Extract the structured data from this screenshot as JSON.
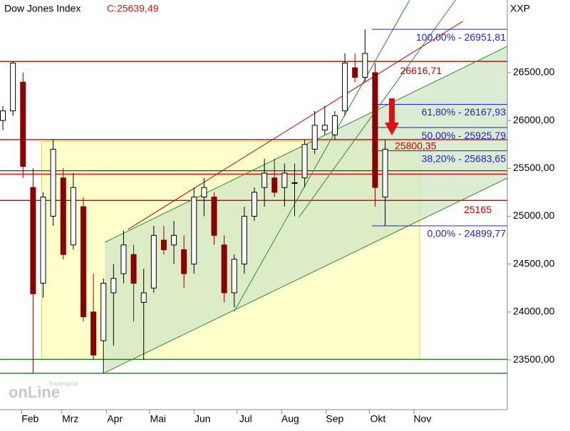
{
  "chart_data": {
    "type": "candlestick",
    "title": "Dow Jones Index",
    "subtitle": "C:25639,49",
    "axis_label": "XXP",
    "watermark": "onLine",
    "watermark_small": "Tradesignal",
    "xlim": [
      17,
      370
    ],
    "ylim": [
      22980,
      27258
    ],
    "xticks": [
      {
        "value": 32,
        "label": "Feb"
      },
      {
        "value": 60,
        "label": "Mrz"
      },
      {
        "value": 91,
        "label": "Apr"
      },
      {
        "value": 121,
        "label": "Mai"
      },
      {
        "value": 152,
        "label": "Jun"
      },
      {
        "value": 182,
        "label": "Jul"
      },
      {
        "value": 213,
        "label": "Aug"
      },
      {
        "value": 244,
        "label": "Sep"
      },
      {
        "value": 274,
        "label": "Okt"
      },
      {
        "value": 305,
        "label": "Nov"
      }
    ],
    "yticks": [
      {
        "value": 23500,
        "label": "23500,00"
      },
      {
        "value": 24000,
        "label": "24000,00"
      },
      {
        "value": 24500,
        "label": "24500,00"
      },
      {
        "value": 25000,
        "label": "25000,00"
      },
      {
        "value": 25500,
        "label": "25500,00"
      },
      {
        "value": 26000,
        "label": "26000,00"
      },
      {
        "value": 26500,
        "label": "26500,00"
      }
    ],
    "up_color": "#000000",
    "down_color": "#8b0000",
    "x": [
      19,
      26,
      33,
      40,
      47,
      54,
      61,
      68,
      75,
      82,
      89,
      96,
      103,
      110,
      117,
      124,
      131,
      138,
      145,
      152,
      159,
      166,
      173,
      180,
      187,
      194,
      201,
      208,
      215,
      222,
      229,
      236,
      243,
      250,
      257,
      264,
      271,
      278,
      285
    ],
    "open": [
      26000,
      26100,
      26400,
      25300,
      24300,
      25000,
      25400,
      24700,
      25100,
      24000,
      23700,
      24200,
      24400,
      24600,
      24100,
      24250,
      24750,
      24700,
      24650,
      24500,
      25200,
      25200,
      24700,
      24200,
      24500,
      25000,
      25300,
      25400,
      25300,
      25350,
      25400,
      25700,
      25900,
      25850,
      26100,
      26550,
      26450,
      26500,
      25200
    ],
    "high": [
      26150,
      26616,
      26500,
      25500,
      25250,
      25800,
      25500,
      25450,
      25200,
      24400,
      24350,
      24500,
      24850,
      24700,
      24450,
      24900,
      24900,
      24950,
      24800,
      25300,
      25400,
      25250,
      24800,
      24600,
      25100,
      25300,
      25600,
      25600,
      25550,
      25550,
      25800,
      26100,
      26150,
      26100,
      26700,
      26700,
      26951,
      26600,
      25800
    ],
    "low": [
      25900,
      26050,
      25400,
      23360,
      24150,
      24900,
      24550,
      24650,
      23900,
      23500,
      23360,
      23650,
      24300,
      23900,
      23500,
      24200,
      24600,
      24500,
      24250,
      24400,
      25000,
      24700,
      24100,
      24050,
      24400,
      24950,
      25100,
      25200,
      25100,
      25000,
      25300,
      25650,
      25850,
      25800,
      26050,
      26400,
      26400,
      25100,
      24900
    ],
    "close": [
      26100,
      26600,
      25520,
      24190,
      25200,
      25700,
      24600,
      25300,
      23950,
      23550,
      24300,
      24350,
      24700,
      24300,
      24200,
      24800,
      24650,
      24800,
      24400,
      25200,
      25300,
      24800,
      24200,
      24550,
      25000,
      25250,
      25450,
      25250,
      25450,
      25350,
      25750,
      25950,
      25950,
      26050,
      26600,
      26450,
      26700,
      25300,
      25700
    ],
    "zone": {
      "x": [
        46,
        309
      ],
      "y": [
        23505,
        25780
      ],
      "color": "#ffffcc"
    },
    "channel": {
      "x": [
        90,
        90,
        370,
        370
      ],
      "y": [
        23367,
        24728,
        26774,
        25398
      ],
      "color": "#cfe6c4"
    },
    "trendlines": [
      {
        "x": [
          90,
          370
        ],
        "y": [
          23367,
          25398
        ],
        "color": "#2e8b2e"
      },
      {
        "x": [
          90,
          370
        ],
        "y": [
          24728,
          26774
        ],
        "color": "#2e8b2e"
      },
      {
        "x": [
          180,
          302
        ],
        "y": [
          24007,
          27258
        ],
        "color": "#2e8b2e"
      },
      {
        "x": [
          225,
          334
        ],
        "y": [
          24989,
          27258
        ],
        "color": "#2e8b2e"
      },
      {
        "x": [
          106,
          339
        ],
        "y": [
          24862,
          27035
        ],
        "color": "#cc0000"
      }
    ],
    "levels": [
      {
        "value": 26616.71,
        "label": "26616,71",
        "color": "#cc0000"
      },
      {
        "value": 25800.35,
        "label": "25800,35",
        "color": "#cc0000"
      },
      {
        "value": 25165,
        "label": "25165",
        "color": "#cc0000"
      },
      {
        "value": 25475,
        "color": "#cc0000"
      },
      {
        "value": 25440,
        "color": "#cc0000"
      },
      {
        "value": 23505,
        "color": "#1a7a1a"
      },
      {
        "value": 23360,
        "color": "#1a7a1a"
      }
    ],
    "fib_color": "#2222cc",
    "fib": [
      {
        "value": 26951.81,
        "label": "100,00% - 26951,81"
      },
      {
        "value": 26167.93,
        "label": "61,80% - 26167,93"
      },
      {
        "value": 25925.79,
        "label": "50,00% - 25925,79"
      },
      {
        "value": 25683.65,
        "label": "38,20% - 25683,65"
      },
      {
        "value": 24899.77,
        "label": "0,00% - 24899,77"
      }
    ]
  }
}
